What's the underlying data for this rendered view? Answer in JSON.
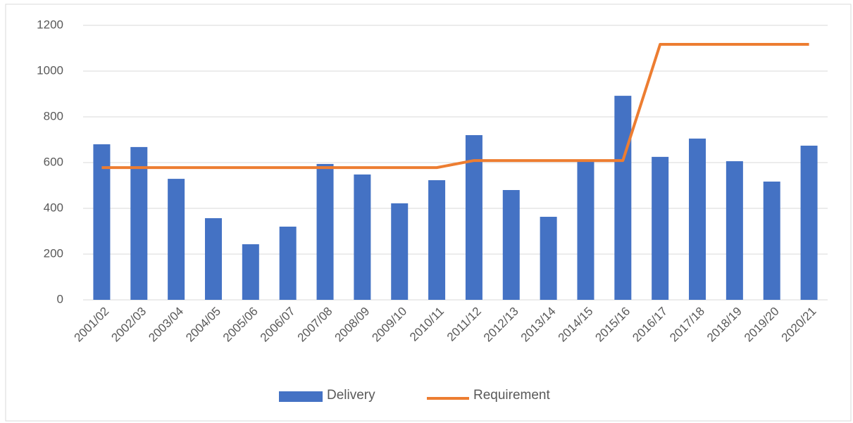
{
  "chart_data": {
    "type": "bar",
    "categories": [
      "2001/02",
      "2002/03",
      "2003/04",
      "2004/05",
      "2005/06",
      "2006/07",
      "2007/08",
      "2008/09",
      "2009/10",
      "2010/11",
      "2011/12",
      "2012/13",
      "2013/14",
      "2014/15",
      "2015/16",
      "2016/17",
      "2017/18",
      "2018/19",
      "2019/20",
      "2020/21"
    ],
    "series": [
      {
        "name": "Delivery",
        "type": "bar",
        "color": "#4472c4",
        "values": [
          680,
          668,
          529,
          357,
          243,
          320,
          594,
          548,
          422,
          523,
          720,
          480,
          363,
          609,
          892,
          625,
          705,
          606,
          517,
          674
        ]
      },
      {
        "name": "Requirement",
        "type": "line",
        "color": "#ed7d31",
        "values": [
          578,
          578,
          578,
          578,
          578,
          578,
          578,
          578,
          578,
          578,
          609,
          609,
          609,
          609,
          609,
          1117,
          1117,
          1117,
          1117,
          1117
        ]
      }
    ],
    "ylim": [
      0,
      1200
    ],
    "yticks": [
      0,
      200,
      400,
      600,
      800,
      1000,
      1200
    ],
    "grid": true,
    "legend": "bottom"
  }
}
